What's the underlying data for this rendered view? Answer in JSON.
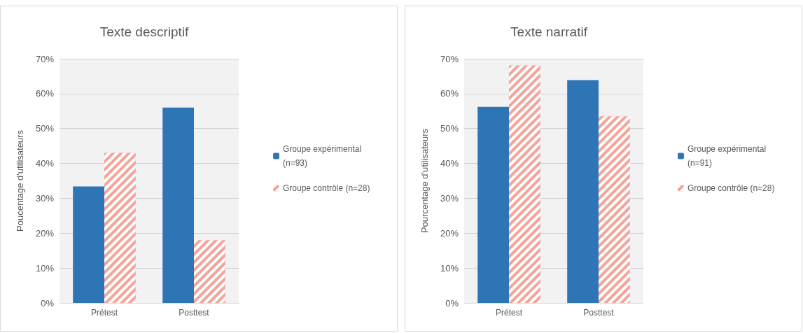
{
  "chart_data": [
    {
      "type": "bar",
      "title": "Texte descriptif",
      "ylabel": "Poucentage d'utilisateurs",
      "categories": [
        "Prétest",
        "Posttest"
      ],
      "series": [
        {
          "name": "Groupe expérimental (n=93)",
          "color": "#2e75b6",
          "values": [
            33.4,
            56
          ]
        },
        {
          "name": "Groupe contrôle (n=28)",
          "color": "#f4a39a",
          "values": [
            43,
            18
          ]
        }
      ],
      "ylim": [
        0,
        70
      ],
      "yticks": [
        {
          "value": 0,
          "label": "0%"
        },
        {
          "value": 10,
          "label": "10%"
        },
        {
          "value": 20,
          "label": "20%"
        },
        {
          "value": 30,
          "label": "30%"
        },
        {
          "value": 40,
          "label": "40%"
        },
        {
          "value": 50,
          "label": "50%"
        },
        {
          "value": 60,
          "label": "60%"
        },
        {
          "value": 70,
          "label": "70%"
        }
      ],
      "grid": "y",
      "legend": "right"
    },
    {
      "type": "bar",
      "title": "Texte narratif",
      "ylabel": "Pourcentage d'utilisateurs",
      "categories": [
        "Prétest",
        "Posttest"
      ],
      "series": [
        {
          "name": "Groupe expérimental (n=91)",
          "color": "#2e75b6",
          "values": [
            56.2,
            63.9
          ]
        },
        {
          "name": "Groupe contrôle (n=28)",
          "color": "#f4a39a",
          "values": [
            68.1,
            53.5
          ]
        }
      ],
      "ylim": [
        0,
        70
      ],
      "yticks": [
        {
          "value": 0,
          "label": "0%"
        },
        {
          "value": 10,
          "label": "10%"
        },
        {
          "value": 20,
          "label": "20%"
        },
        {
          "value": 30,
          "label": "30%"
        },
        {
          "value": 40,
          "label": "40%"
        },
        {
          "value": 50,
          "label": "50%"
        },
        {
          "value": 60,
          "label": "60%"
        },
        {
          "value": 70,
          "label": "70%"
        }
      ],
      "grid": "y",
      "legend": "right"
    }
  ]
}
